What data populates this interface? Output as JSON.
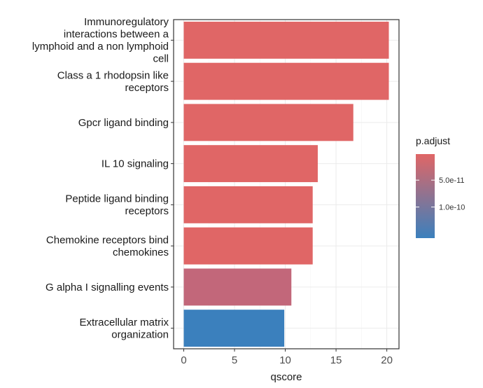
{
  "chart_data": {
    "type": "bar",
    "orientation": "horizontal",
    "categories": [
      [
        "Immunoregulatory",
        "interactions between a",
        "lymphoid and a non lymphoid",
        "cell"
      ],
      [
        "Class a 1 rhodopsin like",
        "receptors"
      ],
      [
        "Gpcr ligand binding"
      ],
      [
        "IL 10 signaling"
      ],
      [
        "Peptide ligand binding",
        "receptors"
      ],
      [
        "Chemokine receptors bind",
        "chemokines"
      ],
      [
        "G alpha I signalling events"
      ],
      [
        "Extracellular matrix",
        "organization"
      ]
    ],
    "values": [
      20.2,
      20.2,
      16.7,
      13.2,
      12.7,
      12.7,
      10.6,
      9.9
    ],
    "bar_colors": [
      "#e06666",
      "#e06666",
      "#e06666",
      "#e06666",
      "#e06666",
      "#e06666",
      "#c2677a",
      "#3b80bd"
    ],
    "xlabel": "qscore",
    "ylabel": "",
    "xlim": [
      -1,
      21.2
    ],
    "xticks": [
      "0",
      "5",
      "10",
      "15",
      "20"
    ],
    "grid": true,
    "legend": {
      "title": "p.adjust",
      "position": "right",
      "gradient_top": "#e06666",
      "gradient_bottom": "#3b80bd",
      "labels": [
        "5.0e-11",
        "1.0e-10"
      ],
      "label_fractions": [
        0.31,
        0.63
      ]
    }
  }
}
